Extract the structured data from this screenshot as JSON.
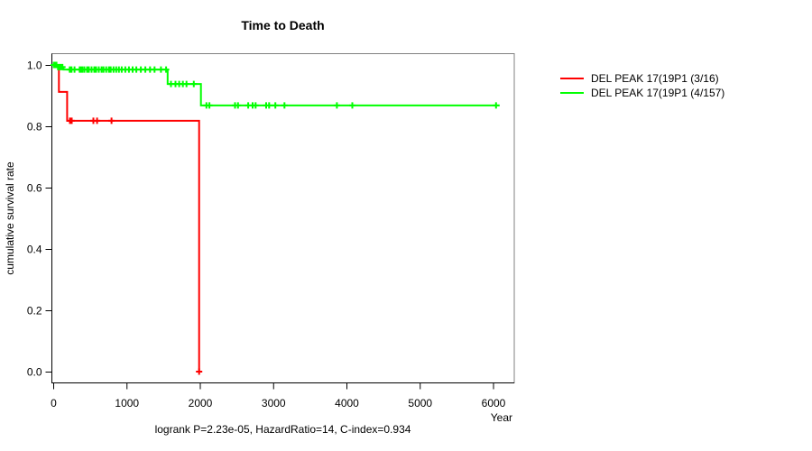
{
  "title": "Time to Death",
  "footer": "logrank P=2.23e-05, HazardRatio=14, C-index=0.934",
  "axes": {
    "x_label": "Year",
    "y_label": "cumulative survival rate",
    "x_ticks": [
      0,
      1000,
      2000,
      3000,
      4000,
      5000,
      6000
    ],
    "y_ticks": [
      0.0,
      0.2,
      0.4,
      0.6,
      0.8,
      1.0
    ]
  },
  "legend": {
    "items": [
      {
        "label": "DEL PEAK 17(19P1 (3/16)",
        "color": "#ff0000"
      },
      {
        "label": "DEL PEAK 17(19P1 (4/157)",
        "color": "#00ff00"
      }
    ]
  },
  "colors": {
    "series_red": "#ff0000",
    "series_green": "#00ff00",
    "box_border": "#808080",
    "axis": "#000000"
  },
  "chart_data": {
    "type": "line",
    "subtype": "kaplan-meier-step",
    "title": "Time to Death",
    "xlabel": "Year",
    "ylabel": "cumulative survival rate",
    "xlim": [
      0,
      6300
    ],
    "ylim": [
      0.0,
      1.0
    ],
    "grid": false,
    "legend_position": "right",
    "annotation": "logrank P=2.23e-05, HazardRatio=14, C-index=0.934",
    "series": [
      {
        "name": "DEL PEAK 17(19P1 (3/16)",
        "color": "#ff0000",
        "steps": [
          [
            0,
            1.0
          ],
          [
            78,
            1.0
          ],
          [
            78,
            0.912
          ],
          [
            190,
            0.912
          ],
          [
            190,
            0.818
          ],
          [
            1990,
            0.818
          ],
          [
            1990,
            0.0
          ]
        ],
        "censor_marks": [
          [
            228,
            0.818
          ],
          [
            252,
            0.818
          ],
          [
            548,
            0.818
          ],
          [
            598,
            0.818
          ],
          [
            795,
            0.818
          ],
          [
            1990,
            0.0
          ]
        ]
      },
      {
        "name": "DEL PEAK 17(19P1 (4/157)",
        "color": "#00ff00",
        "steps": [
          [
            0,
            1.0
          ],
          [
            50,
            1.0
          ],
          [
            50,
            0.993
          ],
          [
            140,
            0.993
          ],
          [
            140,
            0.985
          ],
          [
            1560,
            0.985
          ],
          [
            1560,
            0.938
          ],
          [
            2015,
            0.938
          ],
          [
            2015,
            0.868
          ],
          [
            6090,
            0.868
          ]
        ],
        "censor_marks": [
          [
            8,
            1.0
          ],
          [
            20,
            1.0
          ],
          [
            32,
            1.0
          ],
          [
            44,
            1.0
          ],
          [
            65,
            0.993
          ],
          [
            85,
            0.993
          ],
          [
            105,
            0.993
          ],
          [
            125,
            0.993
          ],
          [
            225,
            0.985
          ],
          [
            250,
            0.985
          ],
          [
            290,
            0.985
          ],
          [
            360,
            0.985
          ],
          [
            375,
            0.985
          ],
          [
            398,
            0.985
          ],
          [
            425,
            0.985
          ],
          [
            461,
            0.985
          ],
          [
            486,
            0.985
          ],
          [
            523,
            0.985
          ],
          [
            560,
            0.985
          ],
          [
            585,
            0.985
          ],
          [
            622,
            0.985
          ],
          [
            660,
            0.985
          ],
          [
            685,
            0.985
          ],
          [
            722,
            0.985
          ],
          [
            759,
            0.985
          ],
          [
            784,
            0.985
          ],
          [
            822,
            0.985
          ],
          [
            859,
            0.985
          ],
          [
            896,
            0.985
          ],
          [
            934,
            0.985
          ],
          [
            983,
            0.985
          ],
          [
            1033,
            0.985
          ],
          [
            1083,
            0.985
          ],
          [
            1133,
            0.985
          ],
          [
            1195,
            0.985
          ],
          [
            1257,
            0.985
          ],
          [
            1320,
            0.985
          ],
          [
            1382,
            0.985
          ],
          [
            1469,
            0.985
          ],
          [
            1540,
            0.985
          ],
          [
            1606,
            0.938
          ],
          [
            1668,
            0.938
          ],
          [
            1718,
            0.938
          ],
          [
            1768,
            0.938
          ],
          [
            1818,
            0.938
          ],
          [
            1917,
            0.938
          ],
          [
            2090,
            0.868
          ],
          [
            2130,
            0.868
          ],
          [
            2480,
            0.868
          ],
          [
            2520,
            0.868
          ],
          [
            2660,
            0.868
          ],
          [
            2720,
            0.868
          ],
          [
            2760,
            0.868
          ],
          [
            2905,
            0.868
          ],
          [
            2945,
            0.868
          ],
          [
            3030,
            0.868
          ],
          [
            3155,
            0.868
          ],
          [
            3870,
            0.868
          ],
          [
            4080,
            0.868
          ],
          [
            6040,
            0.868
          ]
        ]
      }
    ]
  }
}
